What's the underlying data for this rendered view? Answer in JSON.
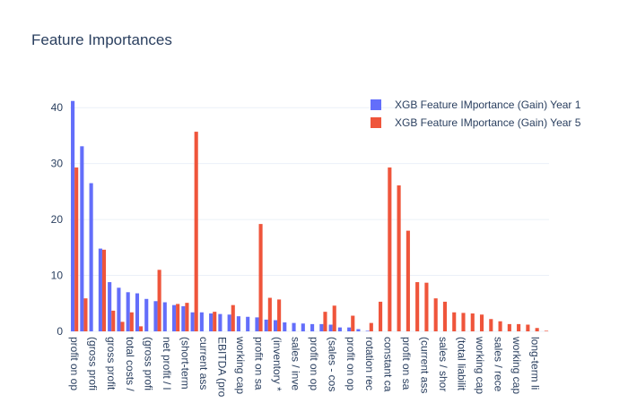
{
  "chart_data": {
    "type": "bar",
    "title": "Feature Importances",
    "categories": [
      "profit on op",
      null,
      "(gross profi",
      null,
      "gross profit",
      null,
      "total costs /",
      null,
      "(gross profi",
      null,
      "net profit / l",
      null,
      "(short-term",
      null,
      "current ass",
      null,
      "EBITDA (pro",
      null,
      "working cap",
      null,
      "profit on sa",
      null,
      "(inventory *",
      null,
      "sales / inve",
      null,
      "profit on op",
      null,
      "(sales - cos",
      null,
      "profit on op",
      null,
      "rotation rec",
      null,
      "constant ca",
      null,
      "profit on sa",
      null,
      "(current ass",
      null,
      "sales / shor",
      null,
      "(total liabilit",
      null,
      "working cap",
      null,
      "sales / rece",
      null,
      "working cap",
      null,
      "long-term li",
      null
    ],
    "series": [
      {
        "name": "XGB Feature IMportance (Gain) Year 1",
        "color": "#636efa",
        "values": [
          41.2,
          33.1,
          26.5,
          14.8,
          8.8,
          7.8,
          7.0,
          6.8,
          5.8,
          5.4,
          5.2,
          4.7,
          4.5,
          3.4,
          3.4,
          3.2,
          3.1,
          3.0,
          2.7,
          2.6,
          2.5,
          2.1,
          2.0,
          1.6,
          1.5,
          1.4,
          1.3,
          1.3,
          1.2,
          0.7,
          0.7,
          0.4,
          0.1,
          0,
          0,
          0,
          0,
          0,
          0,
          0,
          0,
          0,
          0,
          0,
          0,
          0,
          0,
          0,
          0,
          0,
          0,
          0
        ]
      },
      {
        "name": "XGB Feature IMportance (Gain) Year 5",
        "color": "#EF553B",
        "values": [
          29.3,
          5.9,
          0,
          14.6,
          3.7,
          1.7,
          3.4,
          0.9,
          0,
          11.0,
          0,
          4.9,
          5.1,
          35.7,
          0,
          3.5,
          0,
          4.7,
          0,
          0,
          19.2,
          6.0,
          5.7,
          0,
          0,
          0,
          0,
          3.5,
          4.6,
          0,
          2.8,
          0,
          1.5,
          5.3,
          29.3,
          26.1,
          18.0,
          8.8,
          8.7,
          5.9,
          5.3,
          3.4,
          3.3,
          3.2,
          3.0,
          2.2,
          1.8,
          1.3,
          1.3,
          1.2,
          0.6,
          0.1
        ]
      }
    ],
    "ylim": [
      0,
      43.4
    ],
    "yticks": [
      0,
      10,
      20,
      30,
      40
    ],
    "grid": true,
    "legend": "top-right"
  }
}
